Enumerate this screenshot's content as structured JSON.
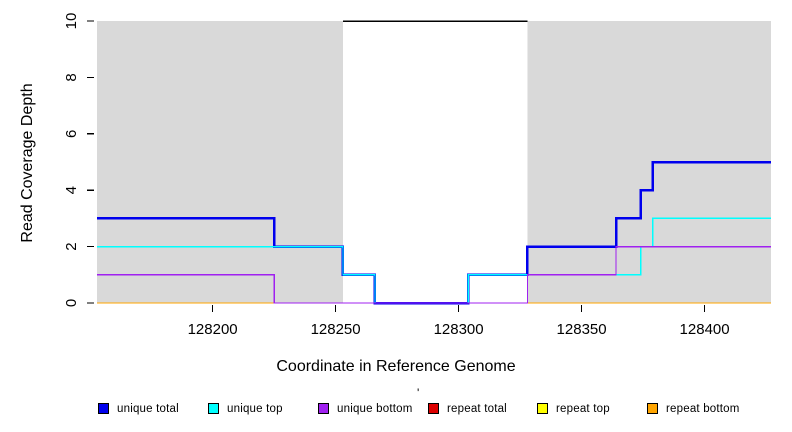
{
  "chart_data": {
    "type": "line",
    "step": true,
    "title": "",
    "xlabel": "Coordinate in Reference Genome",
    "ylabel": "Read Coverage Depth",
    "xlim": [
      128153,
      128427
    ],
    "ylim": [
      0,
      10
    ],
    "xticks": [
      "128200",
      "128250",
      "128300",
      "128350",
      "128400"
    ],
    "xtick_values": [
      128200,
      128250,
      128300,
      128350,
      128400
    ],
    "yticks": [
      "0",
      "2",
      "4",
      "6",
      "8",
      "10"
    ],
    "ytick_values": [
      0,
      2,
      4,
      6,
      8,
      10
    ],
    "grid": false,
    "legend_position": "bottom",
    "masked_regions": {
      "color": "#d9d9d9",
      "ranges": [
        [
          128153,
          128253
        ],
        [
          128328,
          128427
        ]
      ]
    },
    "max_depth_line": {
      "y": 10,
      "x_start": 128253,
      "x_end": 128328,
      "color": "#000000"
    },
    "series": [
      {
        "name": "repeat total",
        "color": "#dd0000",
        "width": 1.4,
        "points": [
          [
            128153,
            0
          ],
          [
            128427,
            0
          ]
        ]
      },
      {
        "name": "repeat top",
        "color": "#ffff00",
        "width": 1.4,
        "points": [
          [
            128153,
            0
          ],
          [
            128427,
            0
          ]
        ]
      },
      {
        "name": "repeat bottom",
        "color": "#ffa500",
        "width": 1.4,
        "points": [
          [
            128153,
            0
          ],
          [
            128427,
            0
          ]
        ]
      },
      {
        "name": "unique total",
        "color": "#0000ee",
        "width": 2.5,
        "points": [
          [
            128153,
            3
          ],
          [
            128225,
            2
          ],
          [
            128253,
            1
          ],
          [
            128266,
            0
          ],
          [
            128304,
            1
          ],
          [
            128328,
            2
          ],
          [
            128364,
            3
          ],
          [
            128374,
            4
          ],
          [
            128379,
            5
          ],
          [
            128427,
            5
          ]
        ]
      },
      {
        "name": "unique top",
        "color": "#00ffff",
        "width": 1.4,
        "points": [
          [
            128153,
            2
          ],
          [
            128253,
            1
          ],
          [
            128266,
            0
          ],
          [
            128304,
            1
          ],
          [
            128374,
            2
          ],
          [
            128379,
            3
          ],
          [
            128427,
            3
          ]
        ]
      },
      {
        "name": "unique bottom",
        "color": "#a020f0",
        "width": 1.4,
        "points": [
          [
            128153,
            1
          ],
          [
            128225,
            0
          ],
          [
            128328,
            1
          ],
          [
            128364,
            2
          ],
          [
            128427,
            2
          ]
        ]
      }
    ]
  },
  "legend": {
    "stray_mark": "'",
    "items": [
      {
        "label": "unique total",
        "color": "#0000ee"
      },
      {
        "label": "unique top",
        "color": "#00ffff"
      },
      {
        "label": "unique bottom",
        "color": "#a020f0"
      },
      {
        "label": "repeat total",
        "color": "#dd0000"
      },
      {
        "label": "repeat top",
        "color": "#ffff00"
      },
      {
        "label": "repeat bottom",
        "color": "#ffa500"
      }
    ]
  }
}
